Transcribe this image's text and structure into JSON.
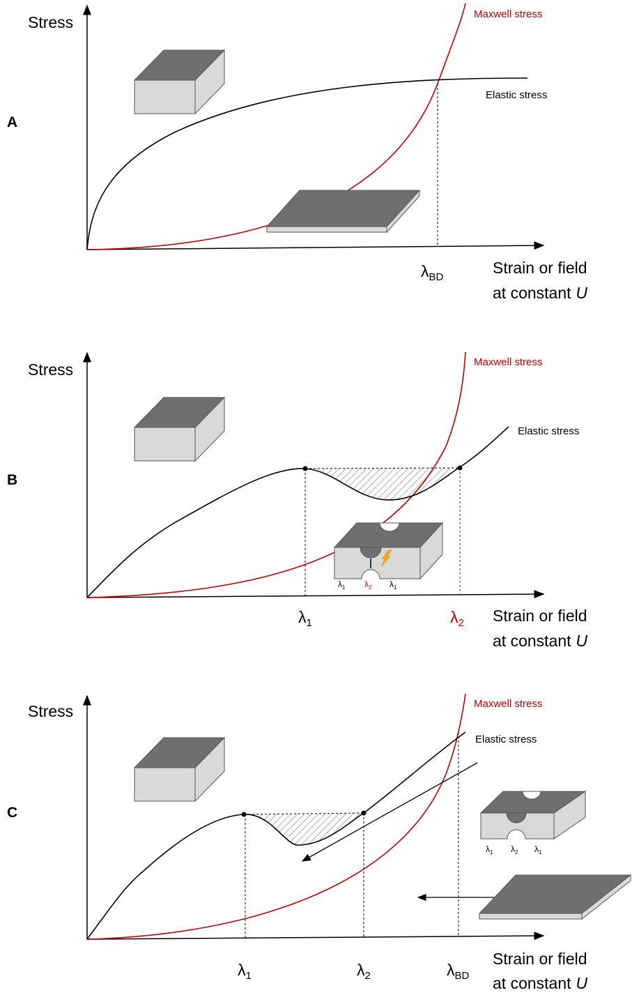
{
  "panels": [
    {
      "label": "A",
      "y_axis_label": "Stress",
      "x_axis_label": {
        "line1": "Strain or field",
        "line2": "at constant",
        "variable": "U"
      },
      "curve_labels": {
        "maxwell": "Maxwell stress",
        "elastic": "Elastic stress"
      },
      "x_markers": [
        {
          "symbol": "λ",
          "subscript": "BD"
        }
      ]
    },
    {
      "label": "B",
      "y_axis_label": "Stress",
      "x_axis_label": {
        "line1": "Strain or field",
        "line2": "at constant",
        "variable": "U"
      },
      "curve_labels": {
        "maxwell": "Maxwell stress",
        "elastic": "Elastic stress"
      },
      "x_markers": [
        {
          "symbol": "λ",
          "subscript": "1"
        },
        {
          "symbol": "λ",
          "subscript": "2"
        }
      ],
      "inset_labels": [
        {
          "symbol": "λ",
          "subscript": "1"
        },
        {
          "symbol": "λ",
          "subscript": "2"
        },
        {
          "symbol": "λ",
          "subscript": "1"
        }
      ]
    },
    {
      "label": "C",
      "y_axis_label": "Stress",
      "x_axis_label": {
        "line1": "Strain or field",
        "line2": "at constant",
        "variable": "U"
      },
      "curve_labels": {
        "maxwell": "Maxwell stress",
        "elastic": "Elastic stress"
      },
      "x_markers": [
        {
          "symbol": "λ",
          "subscript": "1"
        },
        {
          "symbol": "λ",
          "subscript": "2"
        },
        {
          "symbol": "λ",
          "subscript": "BD"
        }
      ],
      "inset_labels": [
        {
          "symbol": "λ",
          "subscript": "1"
        },
        {
          "symbol": "λ",
          "subscript": "2"
        },
        {
          "symbol": "λ",
          "subscript": "1"
        }
      ]
    }
  ]
}
